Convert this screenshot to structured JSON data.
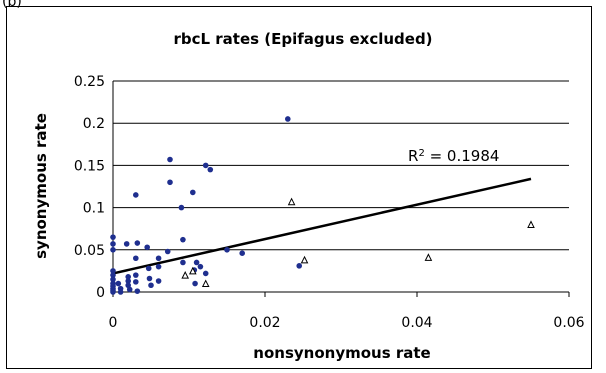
{
  "panel_label": "(b)",
  "chart_data": {
    "type": "scatter",
    "title": "rbcL rates (Epifagus excluded)",
    "xlabel": "nonsynonymous rate",
    "ylabel": "synonymous rate",
    "xlim": [
      0,
      0.06
    ],
    "ylim": [
      0,
      0.25
    ],
    "x_ticks": [
      "0",
      "0.02",
      "0.04",
      "0.06"
    ],
    "y_ticks": [
      "0",
      "0.05",
      "0.1",
      "0.15",
      "0.2",
      "0.25"
    ],
    "grid": "horizontal",
    "legend": "none",
    "colors": {
      "dots": "#1f2f8f",
      "line": "#000000",
      "grid": "#000000"
    },
    "series": [
      {
        "marker": "circle",
        "points": [
          [
            0.0,
            0.065
          ],
          [
            0.0,
            0.057
          ],
          [
            0.0,
            0.05
          ],
          [
            0.0,
            0.025
          ],
          [
            0.0,
            0.02
          ],
          [
            0.0,
            0.015
          ],
          [
            0.0,
            0.01
          ],
          [
            0.0,
            0.007
          ],
          [
            0.0,
            0.004
          ],
          [
            0.0,
            0.002
          ],
          [
            0.0,
            0.0
          ],
          [
            0.0007,
            0.01
          ],
          [
            0.001,
            0.004
          ],
          [
            0.001,
            0.0
          ],
          [
            0.0018,
            0.057
          ],
          [
            0.002,
            0.018
          ],
          [
            0.002,
            0.013
          ],
          [
            0.002,
            0.008
          ],
          [
            0.0022,
            0.003
          ],
          [
            0.003,
            0.115
          ],
          [
            0.0032,
            0.058
          ],
          [
            0.003,
            0.04
          ],
          [
            0.003,
            0.02
          ],
          [
            0.003,
            0.012
          ],
          [
            0.0032,
            0.001
          ],
          [
            0.0045,
            0.053
          ],
          [
            0.0047,
            0.028
          ],
          [
            0.0048,
            0.016
          ],
          [
            0.005,
            0.008
          ],
          [
            0.006,
            0.04
          ],
          [
            0.006,
            0.03
          ],
          [
            0.006,
            0.013
          ],
          [
            0.0072,
            0.048
          ],
          [
            0.0075,
            0.157
          ],
          [
            0.0075,
            0.13
          ],
          [
            0.009,
            0.1
          ],
          [
            0.0092,
            0.062
          ],
          [
            0.0092,
            0.035
          ],
          [
            0.0105,
            0.118
          ],
          [
            0.0107,
            0.026
          ],
          [
            0.0108,
            0.01
          ],
          [
            0.011,
            0.035
          ],
          [
            0.0115,
            0.03
          ],
          [
            0.0122,
            0.15
          ],
          [
            0.0122,
            0.022
          ],
          [
            0.0128,
            0.145
          ],
          [
            0.015,
            0.05
          ],
          [
            0.017,
            0.046
          ],
          [
            0.023,
            0.205
          ],
          [
            0.0245,
            0.031
          ]
        ]
      },
      {
        "marker": "triangle-open",
        "points": [
          [
            0.0095,
            0.02
          ],
          [
            0.0105,
            0.025
          ],
          [
            0.0122,
            0.01
          ],
          [
            0.0235,
            0.107
          ],
          [
            0.0252,
            0.038
          ],
          [
            0.0415,
            0.041
          ],
          [
            0.055,
            0.08
          ]
        ]
      }
    ],
    "trendline": {
      "x": [
        0,
        0.055
      ],
      "y": [
        0.022,
        0.134
      ]
    },
    "annotation": {
      "prefix": "R",
      "superscript": "2",
      "text": " = 0.1984"
    }
  }
}
